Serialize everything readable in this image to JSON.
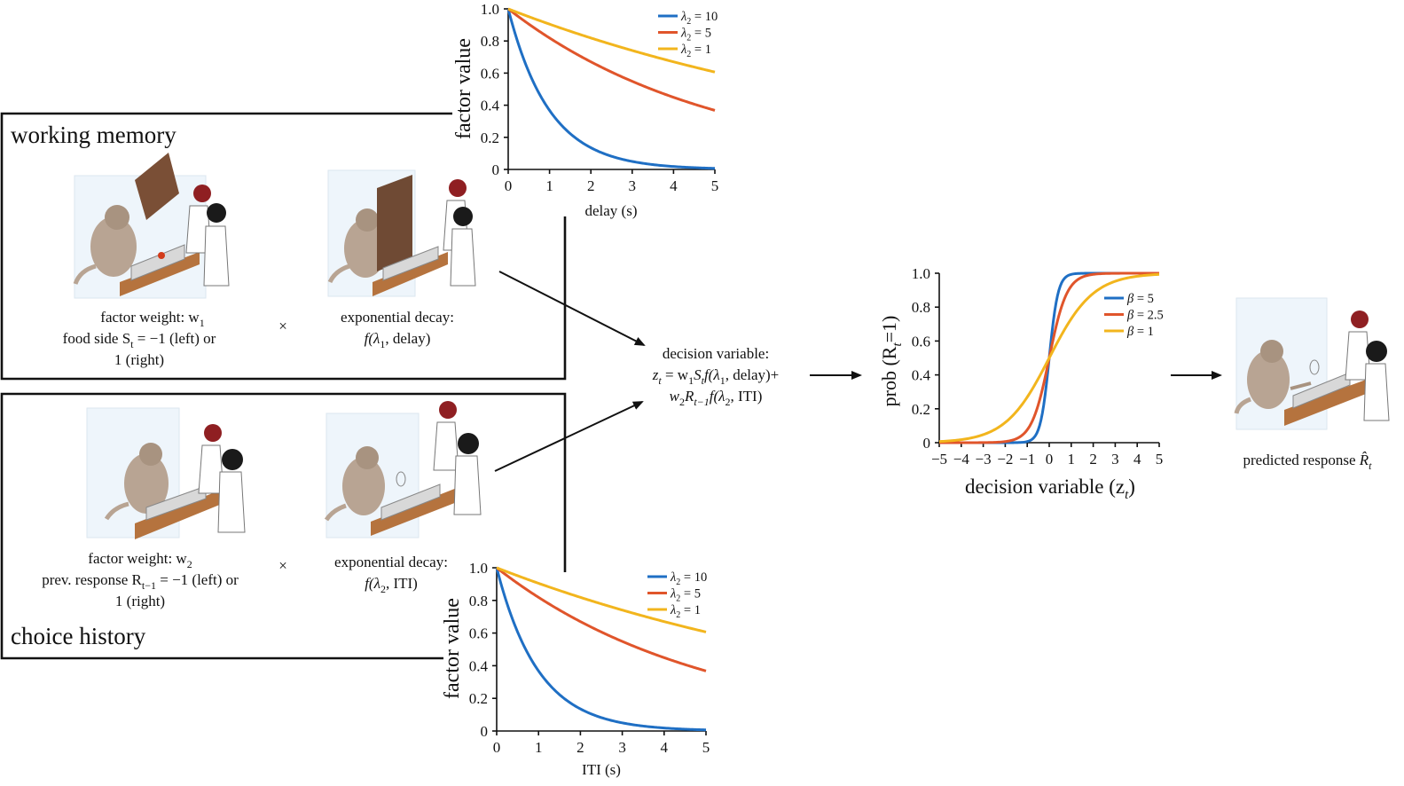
{
  "colors": {
    "l10": "#1f6fc4",
    "l5": "#e0552b",
    "l1": "#f2b51d"
  },
  "wm": {
    "title": "working memory",
    "weight_line1": "factor weight: w",
    "weight_sub": "1",
    "side_pre": "food side S",
    "side_sub": "t",
    "side_post": " = −1 (left) or",
    "side_line3": "1 (right)",
    "times": "×",
    "decay_label": "exponential decay:",
    "decay_pre": "f(λ",
    "decay_sub": "1",
    "decay_post": ", delay)"
  },
  "ch": {
    "title": "choice history",
    "weight_line1": "factor weight: w",
    "weight_sub": "2",
    "resp_pre": "prev. response R",
    "resp_sub": "t−1",
    "resp_post": " = −1 (left) or",
    "resp_line3": "1 (right)",
    "times": "×",
    "decay_label": "exponential decay:",
    "decay_pre": "f(λ",
    "decay_sub": "2",
    "decay_post": ", ITI)"
  },
  "decision": {
    "label": "decision variable:",
    "l2_z": "z",
    "l2_zsub": "t",
    "l2_a": " = w",
    "l2_asub": "1",
    "l2_b": "S",
    "l2_bsub": "t",
    "l2_c": "f(λ",
    "l2_csub": "1",
    "l2_d": ", delay)+",
    "l3_a": "w",
    "l3_asub": "2",
    "l3_b": "R",
    "l3_bsub": "t−1",
    "l3_c": "f(λ",
    "l3_csub": "2",
    "l3_d": ", ITI)"
  },
  "predicted": {
    "pre": "predicted response ",
    "r": "R̂",
    "sub": "t"
  },
  "chart_data": [
    {
      "type": "line",
      "id": "delay",
      "xlabel": "delay (s)",
      "ylabel": "factor value",
      "xlim": [
        0,
        5
      ],
      "ylim": [
        0,
        1.0
      ],
      "x_ticks": [
        "0",
        "1",
        "2",
        "3",
        "4",
        "5"
      ],
      "y_ticks": [
        "0",
        "0.2",
        "0.4",
        "0.6",
        "0.8",
        "1.0"
      ],
      "legend_position": "top-right",
      "series": [
        {
          "name_pre": "λ",
          "name_sub": "2",
          "name_post": " = 10",
          "color_key": "l10",
          "rate": 1.0
        },
        {
          "name_pre": "λ",
          "name_sub": "2",
          "name_post": " = 5",
          "color_key": "l5",
          "rate": 0.2
        },
        {
          "name_pre": "λ",
          "name_sub": "2",
          "name_post": " = 1",
          "color_key": "l1",
          "rate": 0.1
        }
      ]
    },
    {
      "type": "line",
      "id": "iti",
      "xlabel": "ITI (s)",
      "ylabel": "factor value",
      "xlim": [
        0,
        5
      ],
      "ylim": [
        0,
        1.0
      ],
      "x_ticks": [
        "0",
        "1",
        "2",
        "3",
        "4",
        "5"
      ],
      "y_ticks": [
        "0",
        "0.2",
        "0.4",
        "0.6",
        "0.8",
        "1.0"
      ],
      "legend_position": "top-right",
      "series": [
        {
          "name_pre": "λ",
          "name_sub": "2",
          "name_post": " = 10",
          "color_key": "l10",
          "rate": 1.0
        },
        {
          "name_pre": "λ",
          "name_sub": "2",
          "name_post": " = 5",
          "color_key": "l5",
          "rate": 0.2
        },
        {
          "name_pre": "λ",
          "name_sub": "2",
          "name_post": " = 1",
          "color_key": "l1",
          "rate": 0.1
        }
      ]
    },
    {
      "type": "line",
      "id": "sigmoid",
      "xlabel_pre": "decision variable (z",
      "xlabel_sub": "t",
      "xlabel_post": ")",
      "ylabel_pre": "prob (R",
      "ylabel_sub": "t",
      "ylabel_post": "=1)",
      "xlim": [
        -5,
        5
      ],
      "ylim": [
        0,
        1.0
      ],
      "x_ticks": [
        "−5",
        "−4",
        "−3",
        "−2",
        "−1",
        "0",
        "1",
        "2",
        "3",
        "4",
        "5"
      ],
      "y_ticks": [
        "0",
        "0.2",
        "0.4",
        "0.6",
        "0.8",
        "1.0"
      ],
      "legend_position": "top-right",
      "series": [
        {
          "name_pre": "β",
          "name_post": " = 5",
          "color_key": "l10",
          "beta": 5
        },
        {
          "name_pre": "β",
          "name_post": " = 2.5",
          "color_key": "l5",
          "beta": 2.5
        },
        {
          "name_pre": "β",
          "name_post": " = 1",
          "color_key": "l1",
          "beta": 1
        }
      ]
    }
  ]
}
